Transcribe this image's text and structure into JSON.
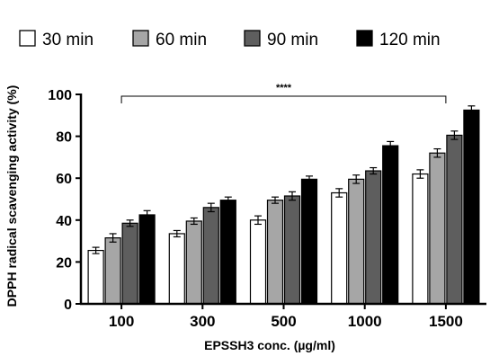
{
  "chart_data": {
    "type": "bar",
    "categories": [
      "100",
      "300",
      "500",
      "1000",
      "1500"
    ],
    "series": [
      {
        "name": "30 min",
        "color": "#ffffff",
        "values": [
          25.5,
          33.5,
          40,
          53,
          62
        ],
        "errors": [
          1.5,
          1.5,
          2,
          2,
          2
        ]
      },
      {
        "name": "60 min",
        "color": "#a6a6a6",
        "values": [
          31.5,
          39.5,
          49.5,
          59.5,
          72
        ],
        "errors": [
          2,
          1.5,
          1.5,
          2,
          2
        ]
      },
      {
        "name": "90 min",
        "color": "#5e5e5e",
        "values": [
          38.5,
          46,
          51.5,
          63.5,
          80.5
        ],
        "errors": [
          1.5,
          2,
          2,
          1.5,
          2
        ]
      },
      {
        "name": "120 min",
        "color": "#000000",
        "values": [
          42.5,
          49.5,
          59.5,
          75.5,
          92.5
        ],
        "errors": [
          2,
          1.5,
          1.5,
          2,
          2
        ]
      }
    ],
    "xlabel": "EPSSH3 conc. (µg/ml)",
    "ylabel": "DPPH radical scavenging activity (%)",
    "ylim": [
      0,
      100
    ],
    "yticks": [
      "0",
      "20",
      "40",
      "60",
      "80",
      "100"
    ],
    "legend_position": "top",
    "significance": {
      "label": "****",
      "from_category": "100",
      "to_category": "1500"
    }
  }
}
